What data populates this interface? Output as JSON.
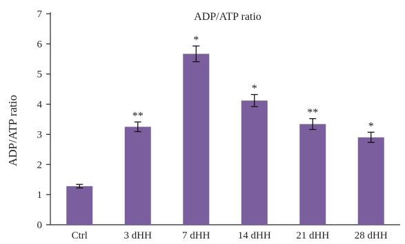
{
  "chart_data": {
    "type": "bar",
    "title": "ADP/ATP ratio",
    "xlabel": "",
    "ylabel": "ADP/ATP ratio",
    "categories": [
      "Ctrl",
      "3 dHH",
      "7 dHH",
      "14 dHH",
      "21 dHH",
      "28 dHH"
    ],
    "values": [
      1.28,
      3.25,
      5.67,
      4.12,
      3.34,
      2.9
    ],
    "errors": [
      0.06,
      0.16,
      0.26,
      0.2,
      0.18,
      0.17
    ],
    "significance": [
      "",
      "**",
      "*",
      "*",
      "**",
      "*"
    ],
    "yticks": [
      "0",
      "1",
      "2",
      "3",
      "4",
      "5",
      "6",
      "7"
    ],
    "ylim": [
      0,
      7
    ],
    "grid": false,
    "bar_color": "#7b5e9e"
  }
}
